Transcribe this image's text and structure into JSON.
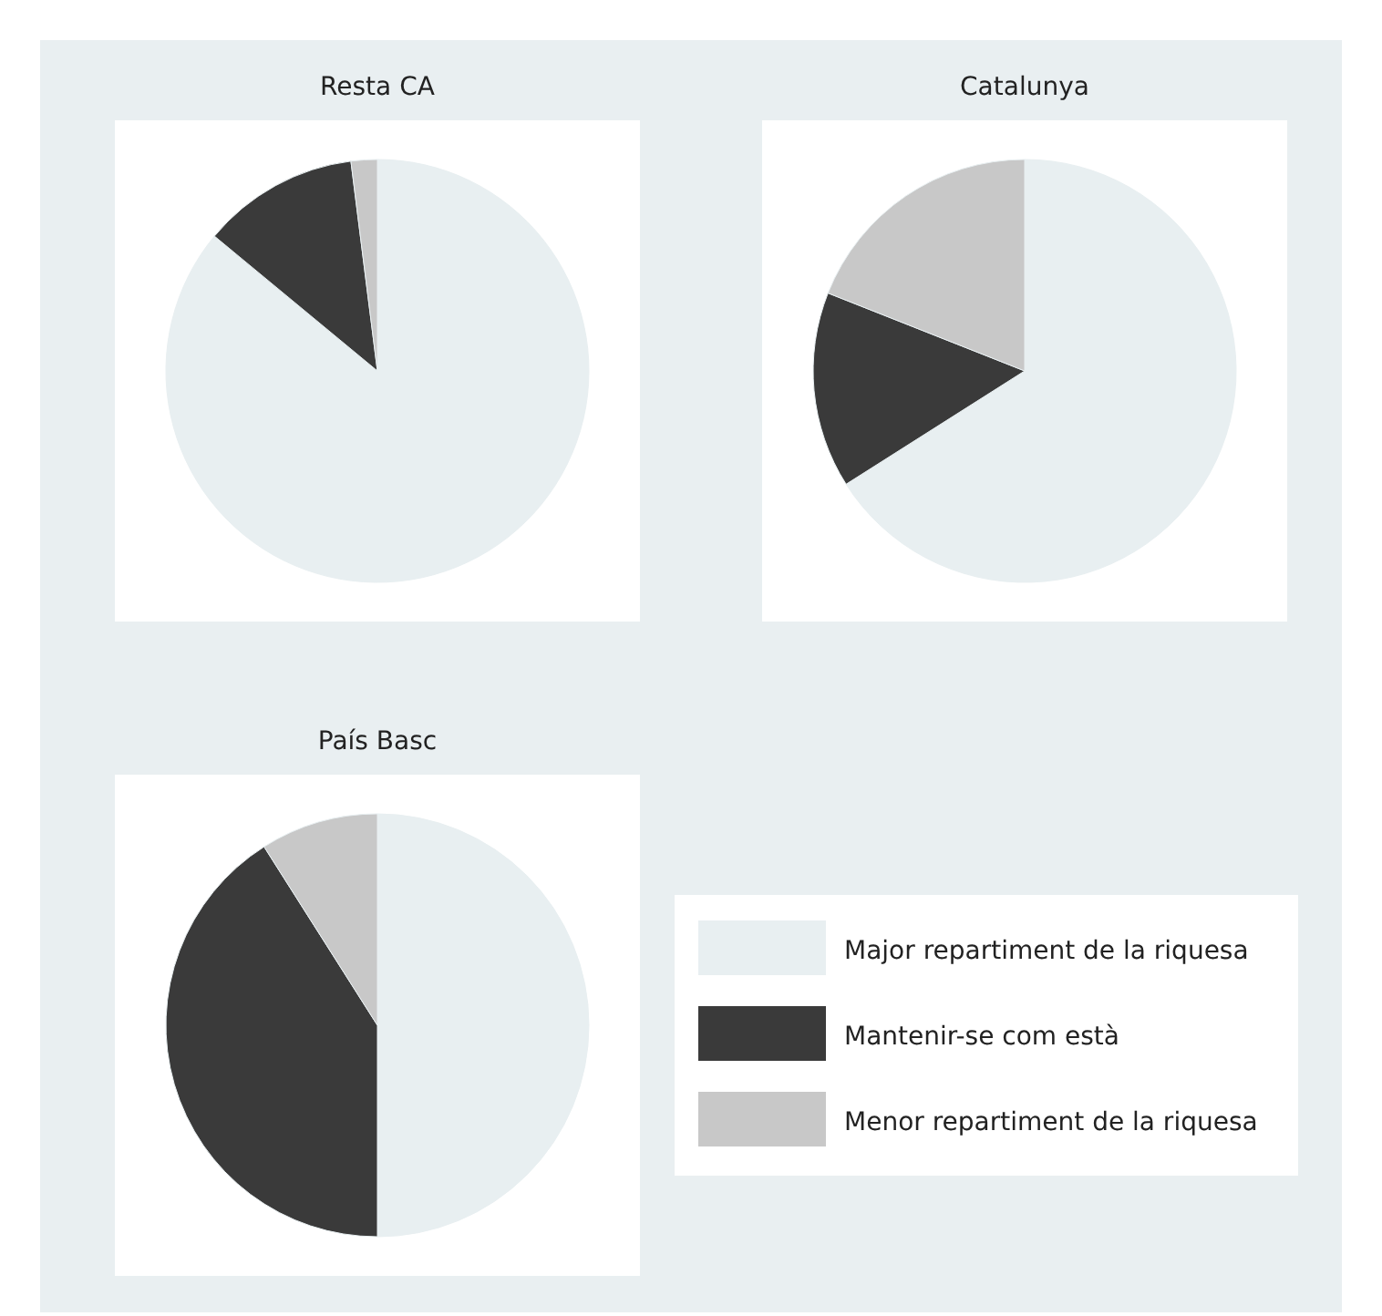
{
  "chart_data": [
    {
      "type": "pie",
      "title": "Resta CA",
      "categories": [
        "Major repartiment de la riquesa",
        "Mantenir-se com està",
        "Menor repartiment de la riquesa"
      ],
      "values": [
        86,
        12,
        2
      ],
      "colors": [
        "#e8eff1",
        "#3a3a3a",
        "#c8c8c8"
      ],
      "legend": "bottom right"
    },
    {
      "type": "pie",
      "title": "Catalunya",
      "categories": [
        null,
        null,
        null
      ],
      "values": [
        66,
        15,
        19
      ],
      "colors": [
        "#e8eff1",
        "#3a3a3a",
        "#c8c8c8"
      ]
    },
    {
      "type": "pie",
      "title": "País Basc",
      "categories": [
        null,
        null,
        null
      ],
      "values": [
        50,
        41,
        9
      ],
      "colors": [
        "#e8eff1",
        "#3a3a3a",
        "#c8c8c8"
      ]
    }
  ]
}
